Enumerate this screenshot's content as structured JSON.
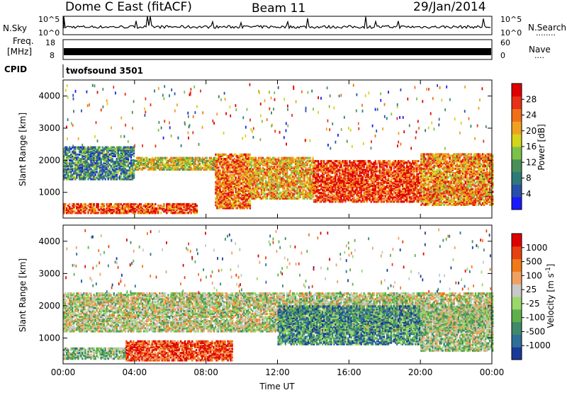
{
  "header": {
    "station": "Dome C East (fitACF)",
    "beam": "Beam 11",
    "date": "29/Jan/2014"
  },
  "strip_panels": {
    "nsky_label": "N.Sky",
    "nsky_ticks": [
      "10^5",
      "10^0"
    ],
    "nsearch_label": "N.Search",
    "nsearch_ticks": [
      "10^5",
      "10^0"
    ],
    "freq_label": "Freq.",
    "freq_unit": "[MHz]",
    "freq_ticks": [
      "18",
      "8"
    ],
    "nave_label": "Nave",
    "nave_ticks": [
      "60",
      "0"
    ],
    "cpid_label": "CPID",
    "cpid_value": "twofsound 3501"
  },
  "chart_data": [
    {
      "type": "heatmap",
      "name": "power",
      "ylabel": "Slant Range [km]",
      "ylim": [
        200,
        4500
      ],
      "y_ticks": [
        1000,
        2000,
        3000,
        4000
      ],
      "xlim": [
        0,
        24
      ],
      "x_ticks": [
        "00:00",
        "04:00",
        "08:00",
        "12:00",
        "16:00",
        "20:00",
        "00:00"
      ],
      "colorbar": {
        "label": "Power [dB]",
        "ticks": [
          "4",
          "8",
          "12",
          "16",
          "20",
          "24",
          "28"
        ],
        "colors": [
          "#1a1aff",
          "#2a4fa8",
          "#2c7a7a",
          "#4a8f58",
          "#7cc24a",
          "#d4d41a",
          "#f0a020",
          "#f07018",
          "#e83018",
          "#e00000"
        ]
      },
      "regions": [
        {
          "t0": 0.0,
          "t1": 7.5,
          "r0": 350,
          "r1": 650,
          "level": 0.8
        },
        {
          "t0": 0.0,
          "t1": 4.0,
          "r0": 1400,
          "r1": 2400,
          "level": 0.3
        },
        {
          "t0": 4.0,
          "t1": 8.5,
          "r0": 1700,
          "r1": 2100,
          "level": 0.55
        },
        {
          "t0": 8.5,
          "t1": 10.5,
          "r0": 500,
          "r1": 2200,
          "level": 0.75
        },
        {
          "t0": 10.5,
          "t1": 14.0,
          "r0": 800,
          "r1": 2100,
          "level": 0.65
        },
        {
          "t0": 14.0,
          "t1": 20.0,
          "r0": 700,
          "r1": 2000,
          "level": 0.85
        },
        {
          "t0": 20.0,
          "t1": 24.0,
          "r0": 600,
          "r1": 2200,
          "level": 0.7
        }
      ]
    },
    {
      "type": "heatmap",
      "name": "velocity",
      "ylabel": "Slant Range [km]",
      "ylim": [
        200,
        4500
      ],
      "y_ticks": [
        1000,
        2000,
        3000,
        4000
      ],
      "xlim": [
        0,
        24
      ],
      "x_ticks": [
        "00:00",
        "04:00",
        "08:00",
        "12:00",
        "16:00",
        "20:00",
        "00:00"
      ],
      "xlabel": "Time UT",
      "colorbar": {
        "label": "Velocity [m s^-1]",
        "ticks": [
          "1000",
          "500",
          "100",
          "25",
          "-25",
          "-100",
          "-500",
          "-1000"
        ],
        "colors": [
          "#1a3a9a",
          "#2e6f9a",
          "#3f8a6a",
          "#5fb04a",
          "#9ad86a",
          "#c8c8c8",
          "#f0a060",
          "#f07a18",
          "#e84010",
          "#e00000"
        ]
      },
      "regions": [
        {
          "t0": 0.0,
          "t1": 3.5,
          "r0": 350,
          "r1": 700,
          "level": 0.4
        },
        {
          "t0": 3.5,
          "t1": 9.5,
          "r0": 300,
          "r1": 900,
          "level": 0.85
        },
        {
          "t0": 0.0,
          "t1": 24.0,
          "r0": 1200,
          "r1": 2400,
          "level": 0.5
        },
        {
          "t0": 12.0,
          "t1": 20.0,
          "r0": 800,
          "r1": 2000,
          "level": 0.25
        },
        {
          "t0": 20.0,
          "t1": 24.0,
          "r0": 600,
          "r1": 2000,
          "level": 0.45
        }
      ]
    }
  ]
}
